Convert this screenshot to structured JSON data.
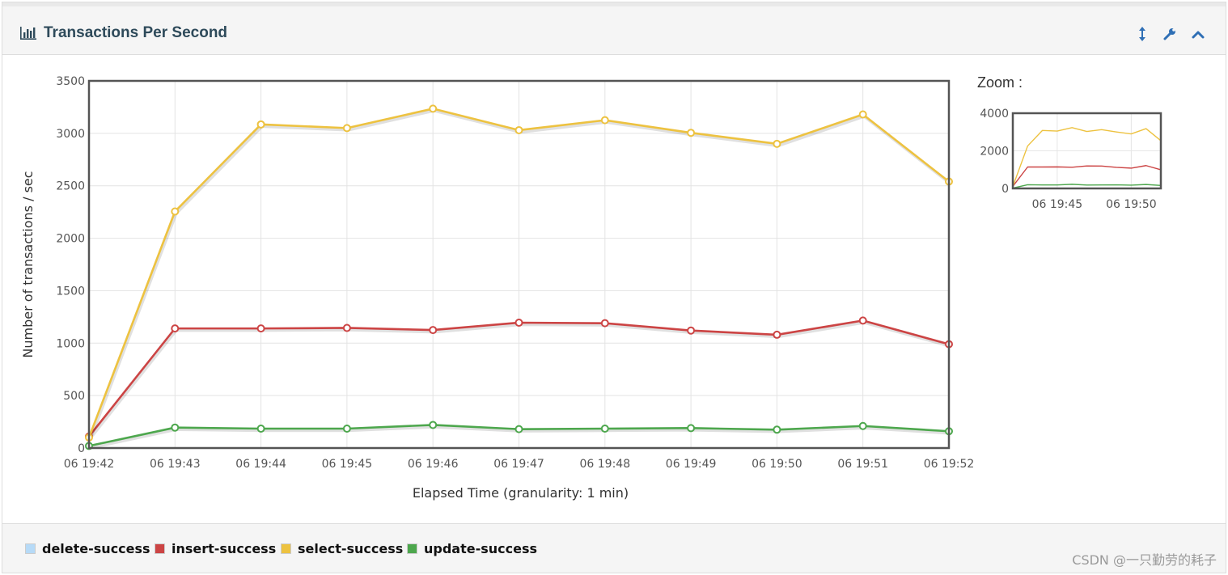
{
  "header": {
    "title": "Transactions Per Second",
    "title_icon": "bar-chart-icon",
    "tools": [
      "resize-vertical-icon",
      "wrench-icon",
      "chevron-up-icon"
    ]
  },
  "zoom": {
    "label": "Zoom :",
    "ylim": [
      0,
      4000
    ],
    "y_ticks": [
      "0",
      "2000",
      "4000"
    ],
    "x_ticks": [
      {
        "label": "06 19:45",
        "index": 3
      },
      {
        "label": "06 19:50",
        "index": 8
      }
    ]
  },
  "chart_data": {
    "type": "line",
    "title": "",
    "xlabel": "Elapsed Time (granularity: 1 min)",
    "ylabel": "Number of transactions / sec",
    "ylim": [
      0,
      3500
    ],
    "y_ticks": [
      "0",
      "500",
      "1000",
      "1500",
      "2000",
      "2500",
      "3000",
      "3500"
    ],
    "categories": [
      "06 19:42",
      "06 19:43",
      "06 19:44",
      "06 19:45",
      "06 19:46",
      "06 19:47",
      "06 19:48",
      "06 19:49",
      "06 19:50",
      "06 19:51",
      "06 19:52"
    ],
    "grid": true,
    "legend_position": "bottom",
    "series": [
      {
        "name": "delete-success",
        "color": "#b6daf7",
        "values": null
      },
      {
        "name": "insert-success",
        "color": "#cc4444",
        "values": [
          110,
          1140,
          1140,
          1145,
          1125,
          1195,
          1190,
          1120,
          1080,
          1215,
          990
        ]
      },
      {
        "name": "select-success",
        "color": "#edc240",
        "values": [
          100,
          2255,
          3085,
          3050,
          3235,
          3030,
          3125,
          3005,
          2900,
          3180,
          2540
        ]
      },
      {
        "name": "update-success",
        "color": "#4da74d",
        "values": [
          20,
          195,
          185,
          185,
          220,
          180,
          185,
          190,
          175,
          210,
          160
        ]
      }
    ]
  },
  "watermark": "CSDN @一只勤劳的耗子"
}
